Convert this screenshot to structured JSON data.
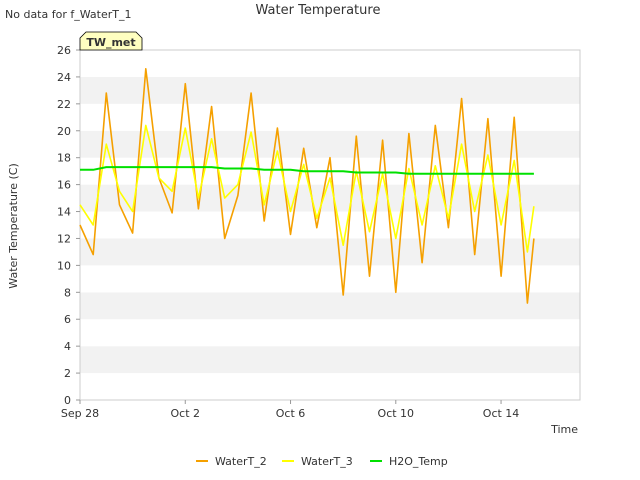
{
  "no_data_note": "No data for f_WaterT_1",
  "site_badge": "TW_met",
  "chart_data": {
    "type": "line",
    "title": "Water Temperature",
    "xlabel": "Time",
    "ylabel": "Water Temperature (C)",
    "ylim": [
      0,
      26
    ],
    "yticks": [
      0,
      2,
      4,
      6,
      8,
      10,
      12,
      14,
      16,
      18,
      20,
      22,
      24,
      26
    ],
    "xlim": [
      "Sep 28",
      "Oct 17"
    ],
    "xticks": [
      "Sep 28",
      "Oct 2",
      "Oct 6",
      "Oct 10",
      "Oct 14"
    ],
    "x": [
      "Sep 28 00:00",
      "Sep 28 12:00",
      "Sep 29 00:00",
      "Sep 29 12:00",
      "Sep 30 00:00",
      "Sep 30 12:00",
      "Oct 1 00:00",
      "Oct 1 12:00",
      "Oct 2 00:00",
      "Oct 2 12:00",
      "Oct 3 00:00",
      "Oct 3 12:00",
      "Oct 4 00:00",
      "Oct 4 12:00",
      "Oct 5 00:00",
      "Oct 5 12:00",
      "Oct 6 00:00",
      "Oct 6 12:00",
      "Oct 7 00:00",
      "Oct 7 12:00",
      "Oct 8 00:00",
      "Oct 8 12:00",
      "Oct 9 00:00",
      "Oct 9 12:00",
      "Oct 10 00:00",
      "Oct 10 12:00",
      "Oct 11 00:00",
      "Oct 11 12:00",
      "Oct 12 00:00",
      "Oct 12 12:00",
      "Oct 13 00:00",
      "Oct 13 12:00",
      "Oct 14 00:00",
      "Oct 14 12:00",
      "Oct 15 00:00",
      "Oct 15 06:00"
    ],
    "series": [
      {
        "name": "WaterT_2",
        "color": "#f5a000",
        "values": [
          13.0,
          10.8,
          22.8,
          14.5,
          12.4,
          24.6,
          16.5,
          13.9,
          23.5,
          14.2,
          21.8,
          12.0,
          15.2,
          22.8,
          13.3,
          20.2,
          12.3,
          18.7,
          12.8,
          18.0,
          7.8,
          19.6,
          9.2,
          19.3,
          8.0,
          19.8,
          10.2,
          20.4,
          12.8,
          22.4,
          10.8,
          20.9,
          9.2,
          21.0,
          7.2,
          12.0
        ]
      },
      {
        "name": "WaterT_3",
        "color": "#ffff00",
        "values": [
          14.5,
          13.0,
          19.0,
          15.5,
          14.0,
          20.4,
          16.5,
          15.5,
          20.2,
          15.0,
          19.4,
          15.0,
          16.0,
          19.9,
          14.5,
          18.5,
          14.0,
          17.5,
          13.5,
          16.5,
          11.5,
          17.0,
          12.5,
          16.8,
          12.0,
          17.2,
          13.0,
          17.4,
          13.5,
          19.0,
          14.0,
          18.2,
          13.0,
          17.8,
          11.0,
          14.4
        ]
      },
      {
        "name": "H2O_Temp",
        "color": "#00e000",
        "values": [
          17.1,
          17.1,
          17.3,
          17.3,
          17.3,
          17.3,
          17.3,
          17.3,
          17.3,
          17.3,
          17.3,
          17.2,
          17.2,
          17.2,
          17.1,
          17.1,
          17.1,
          17.0,
          17.0,
          17.0,
          17.0,
          16.9,
          16.9,
          16.9,
          16.9,
          16.8,
          16.8,
          16.8,
          16.8,
          16.8,
          16.8,
          16.8,
          16.8,
          16.8,
          16.8,
          16.8
        ]
      }
    ],
    "legend_position": "bottom-center",
    "band_colors": [
      "#ffffff",
      "#f2f2f2"
    ],
    "grid": true
  }
}
